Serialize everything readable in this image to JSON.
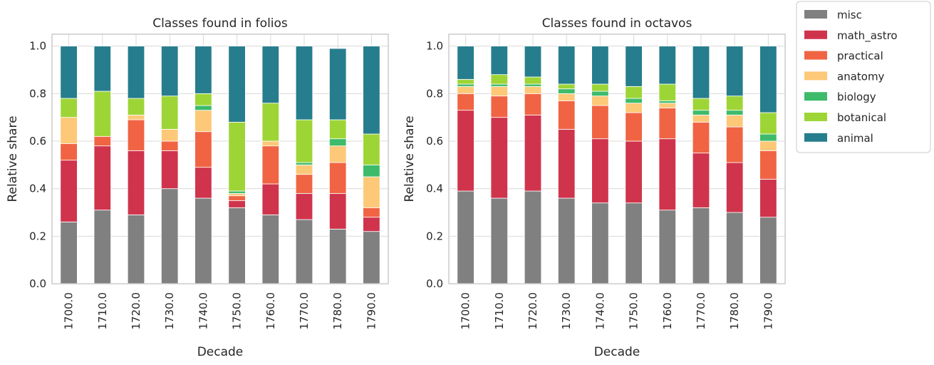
{
  "chart_data": [
    {
      "type": "bar",
      "stacked": true,
      "title": "Classes found in folios",
      "xlabel": "Decade",
      "ylabel": "Relative share",
      "ylim": [
        0,
        1.05
      ],
      "yticks": [
        "0.0",
        "0.2",
        "0.4",
        "0.6",
        "0.8",
        "1.0"
      ],
      "grid": true,
      "categories": [
        "1700.0",
        "1710.0",
        "1720.0",
        "1730.0",
        "1740.0",
        "1750.0",
        "1760.0",
        "1770.0",
        "1780.0",
        "1790.0"
      ],
      "series": [
        {
          "name": "misc",
          "color": "#808080",
          "values": [
            0.26,
            0.31,
            0.29,
            0.4,
            0.36,
            0.32,
            0.29,
            0.27,
            0.23,
            0.22
          ]
        },
        {
          "name": "math_astro",
          "color": "#cf344c",
          "values": [
            0.26,
            0.27,
            0.27,
            0.16,
            0.13,
            0.03,
            0.13,
            0.11,
            0.15,
            0.06
          ]
        },
        {
          "name": "practical",
          "color": "#f06443",
          "values": [
            0.07,
            0.04,
            0.13,
            0.04,
            0.15,
            0.02,
            0.16,
            0.08,
            0.13,
            0.04
          ]
        },
        {
          "name": "anatomy",
          "color": "#fdc877",
          "values": [
            0.11,
            0.0,
            0.02,
            0.05,
            0.09,
            0.01,
            0.02,
            0.04,
            0.07,
            0.13
          ]
        },
        {
          "name": "biology",
          "color": "#3dbb6b",
          "values": [
            0.0,
            0.0,
            0.0,
            0.0,
            0.02,
            0.01,
            0.0,
            0.01,
            0.03,
            0.05
          ]
        },
        {
          "name": "botanical",
          "color": "#9ed536",
          "values": [
            0.08,
            0.19,
            0.07,
            0.14,
            0.05,
            0.29,
            0.16,
            0.18,
            0.08,
            0.13
          ]
        },
        {
          "name": "animal",
          "color": "#267d8d",
          "values": [
            0.22,
            0.19,
            0.22,
            0.21,
            0.2,
            0.32,
            0.24,
            0.31,
            0.3,
            0.37
          ]
        }
      ]
    },
    {
      "type": "bar",
      "stacked": true,
      "title": "Classes found in octavos",
      "xlabel": "Decade",
      "ylabel": "Relative share",
      "ylim": [
        0,
        1.05
      ],
      "yticks": [
        "0.0",
        "0.2",
        "0.4",
        "0.6",
        "0.8",
        "1.0"
      ],
      "grid": true,
      "categories": [
        "1700.0",
        "1710.0",
        "1720.0",
        "1730.0",
        "1740.0",
        "1750.0",
        "1760.0",
        "1770.0",
        "1780.0",
        "1790.0"
      ],
      "series": [
        {
          "name": "misc",
          "color": "#808080",
          "values": [
            0.39,
            0.36,
            0.39,
            0.36,
            0.34,
            0.34,
            0.31,
            0.32,
            0.3,
            0.28
          ]
        },
        {
          "name": "math_astro",
          "color": "#cf344c",
          "values": [
            0.34,
            0.34,
            0.32,
            0.29,
            0.27,
            0.26,
            0.3,
            0.23,
            0.21,
            0.16
          ]
        },
        {
          "name": "practical",
          "color": "#f06443",
          "values": [
            0.07,
            0.09,
            0.09,
            0.12,
            0.14,
            0.12,
            0.13,
            0.13,
            0.15,
            0.12
          ]
        },
        {
          "name": "anatomy",
          "color": "#fdc877",
          "values": [
            0.03,
            0.04,
            0.03,
            0.03,
            0.04,
            0.04,
            0.02,
            0.03,
            0.05,
            0.04
          ]
        },
        {
          "name": "biology",
          "color": "#3dbb6b",
          "values": [
            0.01,
            0.01,
            0.01,
            0.02,
            0.02,
            0.02,
            0.01,
            0.02,
            0.02,
            0.03
          ]
        },
        {
          "name": "botanical",
          "color": "#9ed536",
          "values": [
            0.02,
            0.04,
            0.03,
            0.02,
            0.03,
            0.05,
            0.07,
            0.05,
            0.06,
            0.09
          ]
        },
        {
          "name": "animal",
          "color": "#267d8d",
          "values": [
            0.14,
            0.12,
            0.13,
            0.16,
            0.16,
            0.17,
            0.16,
            0.22,
            0.21,
            0.28
          ]
        }
      ]
    }
  ],
  "legend": {
    "placement": "outside-right",
    "items": [
      {
        "label": "misc",
        "color": "#808080"
      },
      {
        "label": "math_astro",
        "color": "#cf344c"
      },
      {
        "label": "practical",
        "color": "#f06443"
      },
      {
        "label": "anatomy",
        "color": "#fdc877"
      },
      {
        "label": "biology",
        "color": "#3dbb6b"
      },
      {
        "label": "botanical",
        "color": "#9ed536"
      },
      {
        "label": "animal",
        "color": "#267d8d"
      }
    ]
  }
}
